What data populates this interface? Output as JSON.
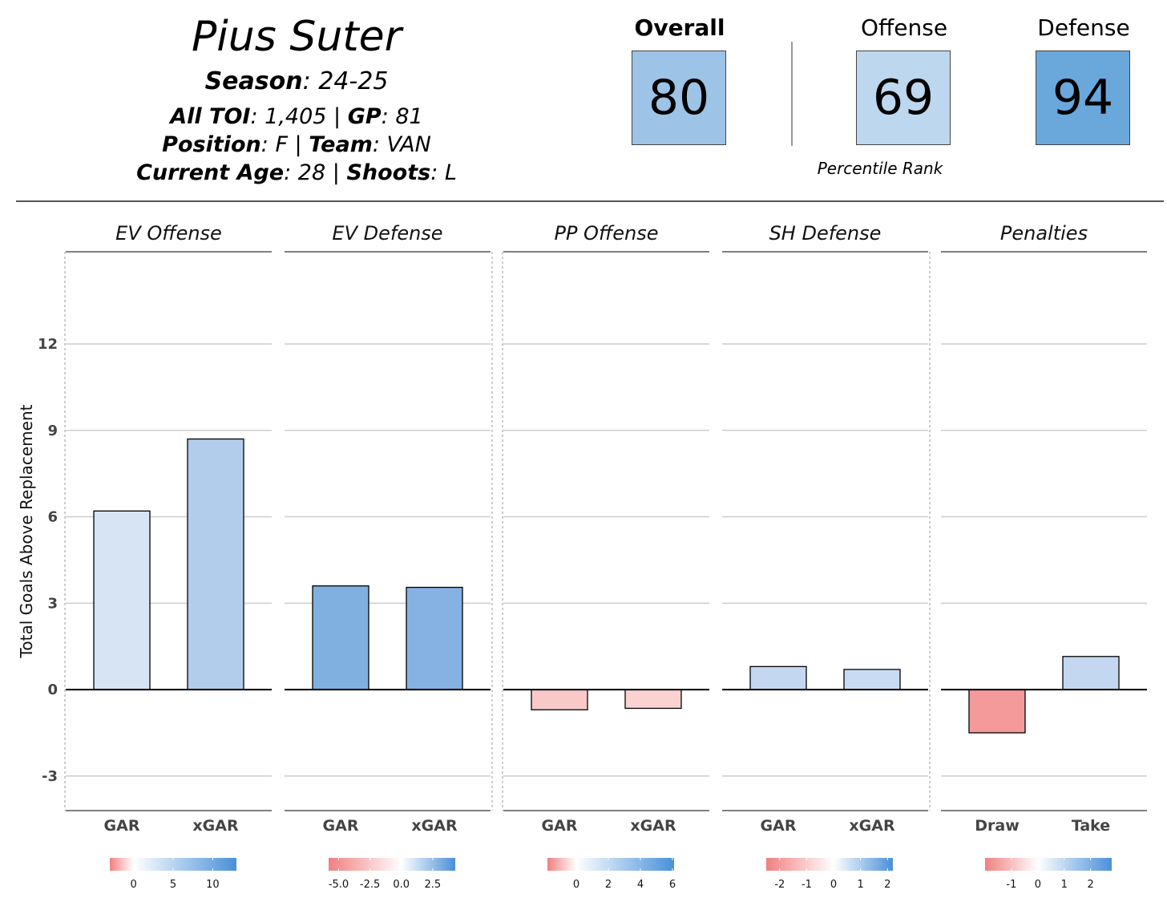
{
  "header": {
    "player_name": "Pius Suter",
    "season_label": "Season",
    "season_value": ": 24-25",
    "toi_label": "All TOI",
    "toi_value": ": 1,405 | ",
    "gp_label": "GP",
    "gp_value": ": 81",
    "position_label": "Position",
    "position_value": ": F | ",
    "team_label": "Team",
    "team_value": ": VAN",
    "age_label": "Current Age",
    "age_value": ": 28 | ",
    "shoots_label": "Shoots",
    "shoots_value": ": L"
  },
  "scores": {
    "overall": {
      "label": "Overall",
      "value": "80",
      "color": "#9dc3e6"
    },
    "offense": {
      "label": "Offense",
      "value": "69",
      "color": "#bdd7ee"
    },
    "defense": {
      "label": "Defense",
      "value": "94",
      "color": "#6aa8dc"
    },
    "caption": "Percentile Rank"
  },
  "chart_data": {
    "type": "bar",
    "ylabel": "Total Goals Above Replacement",
    "ylim": [
      -4.2,
      15.2
    ],
    "yticks": [
      -3,
      0,
      3,
      6,
      9,
      12
    ],
    "grid": true,
    "facets": [
      {
        "title": "EV Offense",
        "categories": [
          "GAR",
          "xGAR"
        ],
        "values": [
          6.2,
          8.7
        ],
        "colors": [
          "#d6e4f4",
          "#b2cdec"
        ],
        "legend_ticks": [
          "0",
          "5",
          "10"
        ],
        "legend_range": [
          -3,
          13
        ]
      },
      {
        "title": "EV Defense",
        "categories": [
          "GAR",
          "xGAR"
        ],
        "values": [
          3.6,
          3.55
        ],
        "colors": [
          "#80b0e0",
          "#85b2e2"
        ],
        "legend_ticks": [
          "-5.0",
          "-2.5",
          "0.0",
          "2.5"
        ],
        "legend_range": [
          -5.8,
          4.3
        ]
      },
      {
        "title": "PP Offense",
        "categories": [
          "GAR",
          "xGAR"
        ],
        "values": [
          -0.7,
          -0.65
        ],
        "colors": [
          "#f9c9c9",
          "#fad2d2"
        ],
        "legend_ticks": [
          "0",
          "2",
          "4",
          "6"
        ],
        "legend_range": [
          -1.8,
          6.1
        ]
      },
      {
        "title": "SH Defense",
        "categories": [
          "GAR",
          "xGAR"
        ],
        "values": [
          0.8,
          0.7
        ],
        "colors": [
          "#c3d7f0",
          "#c9dbf2"
        ],
        "legend_ticks": [
          "-2",
          "-1",
          "0",
          "1",
          "2"
        ],
        "legend_range": [
          -2.5,
          2.2
        ]
      },
      {
        "title": "Penalties",
        "categories": [
          "Draw",
          "Take"
        ],
        "values": [
          -1.5,
          1.15
        ],
        "colors": [
          "#f49a9a",
          "#c3d7f0"
        ],
        "legend_ticks": [
          "-1",
          "0",
          "1",
          "2"
        ],
        "legend_range": [
          -2.0,
          2.8
        ]
      }
    ]
  }
}
